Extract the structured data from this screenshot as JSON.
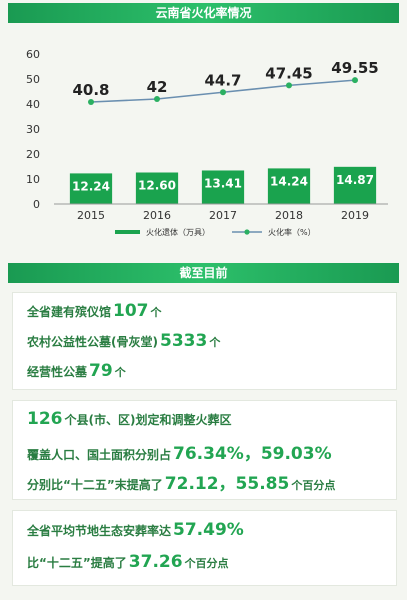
{
  "header": {
    "title": "云南省火化率情况"
  },
  "chart_data": {
    "type": "bar+line",
    "categories": [
      "2015",
      "2016",
      "2017",
      "2018",
      "2019"
    ],
    "ylim": [
      0,
      60
    ],
    "yticks": [
      0,
      10,
      20,
      30,
      40,
      50,
      60
    ],
    "grid": false,
    "legend_position": "bottom",
    "series": [
      {
        "name": "火化遗体（万具）",
        "type": "bar",
        "values": [
          12.24,
          12.6,
          13.41,
          14.24,
          14.87
        ],
        "labels": [
          "12.24",
          "12.60",
          "13.41",
          "14.24",
          "14.87"
        ],
        "color": "#1aa34e"
      },
      {
        "name": "火化率（%）",
        "type": "line",
        "values": [
          40.8,
          42,
          44.7,
          47.45,
          49.55
        ],
        "labels": [
          "40.8",
          "42",
          "44.7",
          "47.45",
          "49.55"
        ],
        "color": "#6a8fb0",
        "marker_color": "#2bb062"
      }
    ]
  },
  "section2": {
    "title": "截至目前"
  },
  "facts": {
    "g1": {
      "r1": {
        "a": "全省建有殡仪馆",
        "n": "107",
        "b": "个"
      },
      "r2": {
        "a": "农村公益性公墓(骨灰堂)",
        "n": "5333",
        "b": "个"
      },
      "r3": {
        "a": "经营性公墓",
        "n": "79",
        "b": "个"
      }
    },
    "g2": {
      "r1": {
        "n": "126",
        "b": "个县(市、区)划定和调整火葬区"
      },
      "r2": {
        "a": "覆盖人口、国土面积分别占",
        "n": "76.34%，59.03%"
      },
      "r3": {
        "a": "分别比“十二五”末提高了",
        "n": "72.12，55.85",
        "b": "个百分点"
      }
    },
    "g3": {
      "r1": {
        "a": "全省平均节地生态安葬率达",
        "n": "57.49%"
      },
      "r2": {
        "a": "比“十二五”提高了",
        "n": "37.26",
        "b": "个百分点"
      }
    }
  }
}
